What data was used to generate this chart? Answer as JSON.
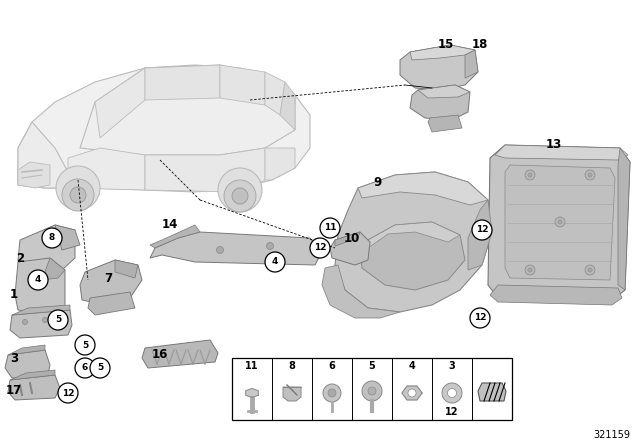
{
  "background_color": "#ffffff",
  "diagram_number": "321159",
  "figure_width": 6.4,
  "figure_height": 4.48,
  "dpi": 100,
  "car": {
    "body_color": "#e8e8e8",
    "line_color": "#aaaaaa",
    "line_width": 0.7
  },
  "parts_color": "#c0c0c0",
  "parts_edge": "#888888",
  "parts_dark": "#999999",
  "parts_light": "#d8d8d8",
  "label_color": "#000000",
  "circle_bg": "#ffffff",
  "circle_border": "#000000"
}
